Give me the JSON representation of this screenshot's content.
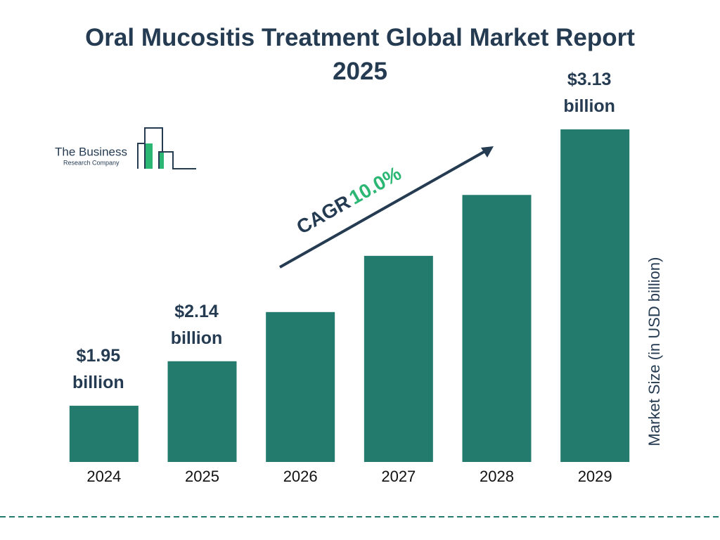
{
  "chart_data": {
    "type": "bar",
    "title": "Oral Mucositis Treatment Global Market Report 2025",
    "categories": [
      "2024",
      "2025",
      "2026",
      "2027",
      "2028",
      "2029"
    ],
    "values": [
      1.95,
      2.14,
      2.35,
      2.59,
      2.85,
      3.13
    ],
    "value_labels": [
      "$1.95 billion",
      "$2.14 billion",
      null,
      null,
      null,
      "$3.13 billion"
    ],
    "color": "#227b6c",
    "ylim": [
      1.71,
      3.13
    ],
    "y_label": "Market Size (in USD billion)",
    "cagr_label": "CAGR",
    "cagr_value": "10.0%"
  },
  "logo": {
    "line1": "The Business",
    "line2": "Research Company"
  }
}
